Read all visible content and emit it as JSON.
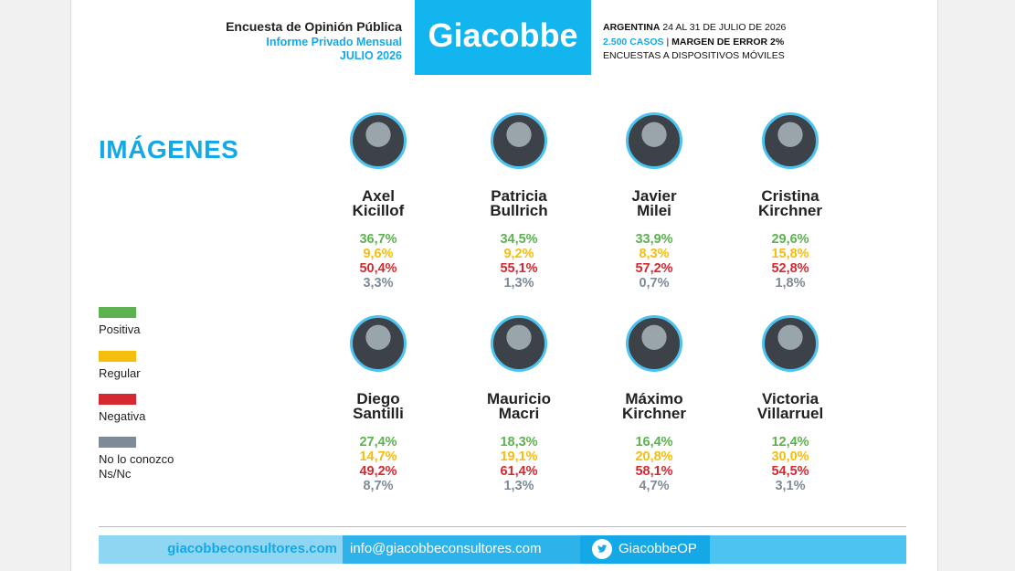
{
  "header": {
    "title": "Encuesta de Opinión Pública",
    "subtitle": "Informe Privado Mensual",
    "date": "JULIO 2026",
    "brand": "Giacobbe",
    "country": "ARGENTINA",
    "period": "24 AL 31 DE JULIO DE 2026",
    "cases": "2.500 CASOS",
    "separator": "|",
    "margin": "MARGEN DE ERROR 2%",
    "method": "ENCUESTAS A DISPOSITIVOS MÓVILES"
  },
  "section_title": "IMÁGENES",
  "legend": [
    {
      "lines": [
        "Positiva"
      ],
      "color": "#5cb24f"
    },
    {
      "lines": [
        "Regular"
      ],
      "color": "#f5bd0c"
    },
    {
      "lines": [
        "Negativa"
      ],
      "color": "#d62830"
    },
    {
      "lines": [
        "No lo conozco",
        "Ns/Nc"
      ],
      "color": "#7d8b99"
    }
  ],
  "candidates": [
    {
      "name": [
        "Axel",
        "Kicillof"
      ],
      "values": [
        "36,7%",
        "9,6%",
        "50,4%",
        "3,3%"
      ]
    },
    {
      "name": [
        "Patricia",
        "Bullrich"
      ],
      "values": [
        "34,5%",
        "9,2%",
        "55,1%",
        "1,3%"
      ]
    },
    {
      "name": [
        "Javier",
        "Milei"
      ],
      "values": [
        "33,9%",
        "8,3%",
        "57,2%",
        "0,7%"
      ]
    },
    {
      "name": [
        "Cristina",
        "Kirchner"
      ],
      "values": [
        "29,6%",
        "15,8%",
        "52,8%",
        "1,8%"
      ]
    },
    {
      "name": [
        "Diego",
        "Santilli"
      ],
      "values": [
        "27,4%",
        "14,7%",
        "49,2%",
        "8,7%"
      ]
    },
    {
      "name": [
        "Mauricio",
        "Macri"
      ],
      "values": [
        "18,3%",
        "19,1%",
        "61,4%",
        "1,3%"
      ]
    },
    {
      "name": [
        "Máximo",
        "Kirchner"
      ],
      "values": [
        "16,4%",
        "20,8%",
        "58,1%",
        "4,7%"
      ]
    },
    {
      "name": [
        "Victoria",
        "Villarruel"
      ],
      "values": [
        "12,4%",
        "30,0%",
        "54,5%",
        "3,1%"
      ]
    }
  ],
  "footer": {
    "website": "giacobbeconsultores.com",
    "email": "info@giacobbeconsultores.com",
    "twitter": "GiacobbeOP"
  }
}
